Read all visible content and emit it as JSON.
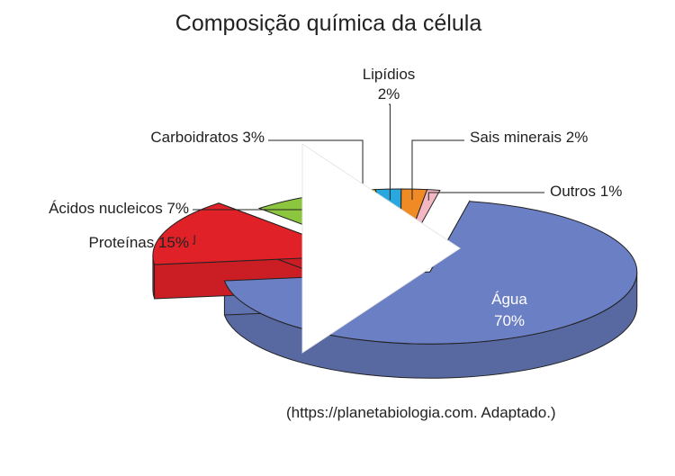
{
  "chart_data": {
    "type": "pie",
    "title": "Composição química da célula",
    "slices": [
      {
        "label": "Água",
        "value": 70,
        "value_label": "70%",
        "color": "#6b7fc4"
      },
      {
        "label": "Proteínas",
        "value": 15,
        "value_label": "15%",
        "color": "#e02128"
      },
      {
        "label": "Ácidos nucleicos",
        "value": 7,
        "value_label": "7%",
        "color": "#8cc63f"
      },
      {
        "label": "Carboidratos",
        "value": 3,
        "value_label": "3%",
        "color": "#f5d000"
      },
      {
        "label": "Lipídios",
        "value": 2,
        "value_label": "2%",
        "color": "#29a8e0"
      },
      {
        "label": "Sais minerais",
        "value": 2,
        "value_label": "2%",
        "color": "#f08a24"
      },
      {
        "label": "Outros",
        "value": 1,
        "value_label": "1%",
        "color": "#f4b7c4"
      }
    ],
    "labels": {
      "agua_name": "Água",
      "agua_value": "70%",
      "proteinas": "Proteínas 15%",
      "acidos": "Ácidos nucleicos 7%",
      "carboidratos": "Carboidratos 3%",
      "lipidios_name": "Lipídios",
      "lipidios_value": "2%",
      "sais": "Sais minerais 2%",
      "outros": "Outros 1%"
    },
    "source": "(https://planetabiologia.com. Adaptado.)"
  },
  "overlay": {
    "icon": "play-icon",
    "color": "#ffffff"
  }
}
